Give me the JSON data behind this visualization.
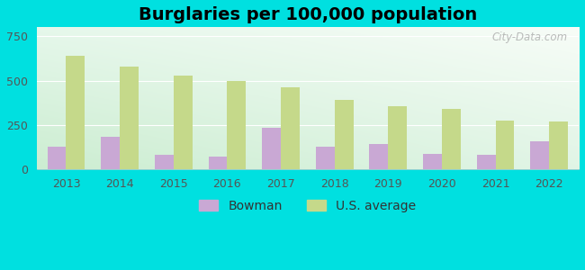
{
  "title": "Burglaries per 100,000 population",
  "years": [
    2013,
    2014,
    2015,
    2016,
    2017,
    2018,
    2019,
    2020,
    2021,
    2022
  ],
  "bowman": [
    130,
    185,
    80,
    70,
    235,
    130,
    145,
    85,
    80,
    160
  ],
  "us_average": [
    640,
    580,
    530,
    500,
    460,
    390,
    355,
    340,
    275,
    270
  ],
  "bowman_color": "#c9a8d4",
  "us_avg_color": "#c5d98a",
  "background_outer": "#00e0e0",
  "ylim": [
    0,
    800
  ],
  "yticks": [
    0,
    250,
    500,
    750
  ],
  "title_fontsize": 14,
  "legend_fontsize": 10,
  "tick_fontsize": 9,
  "watermark": "City-Data.com",
  "bar_width": 0.35
}
